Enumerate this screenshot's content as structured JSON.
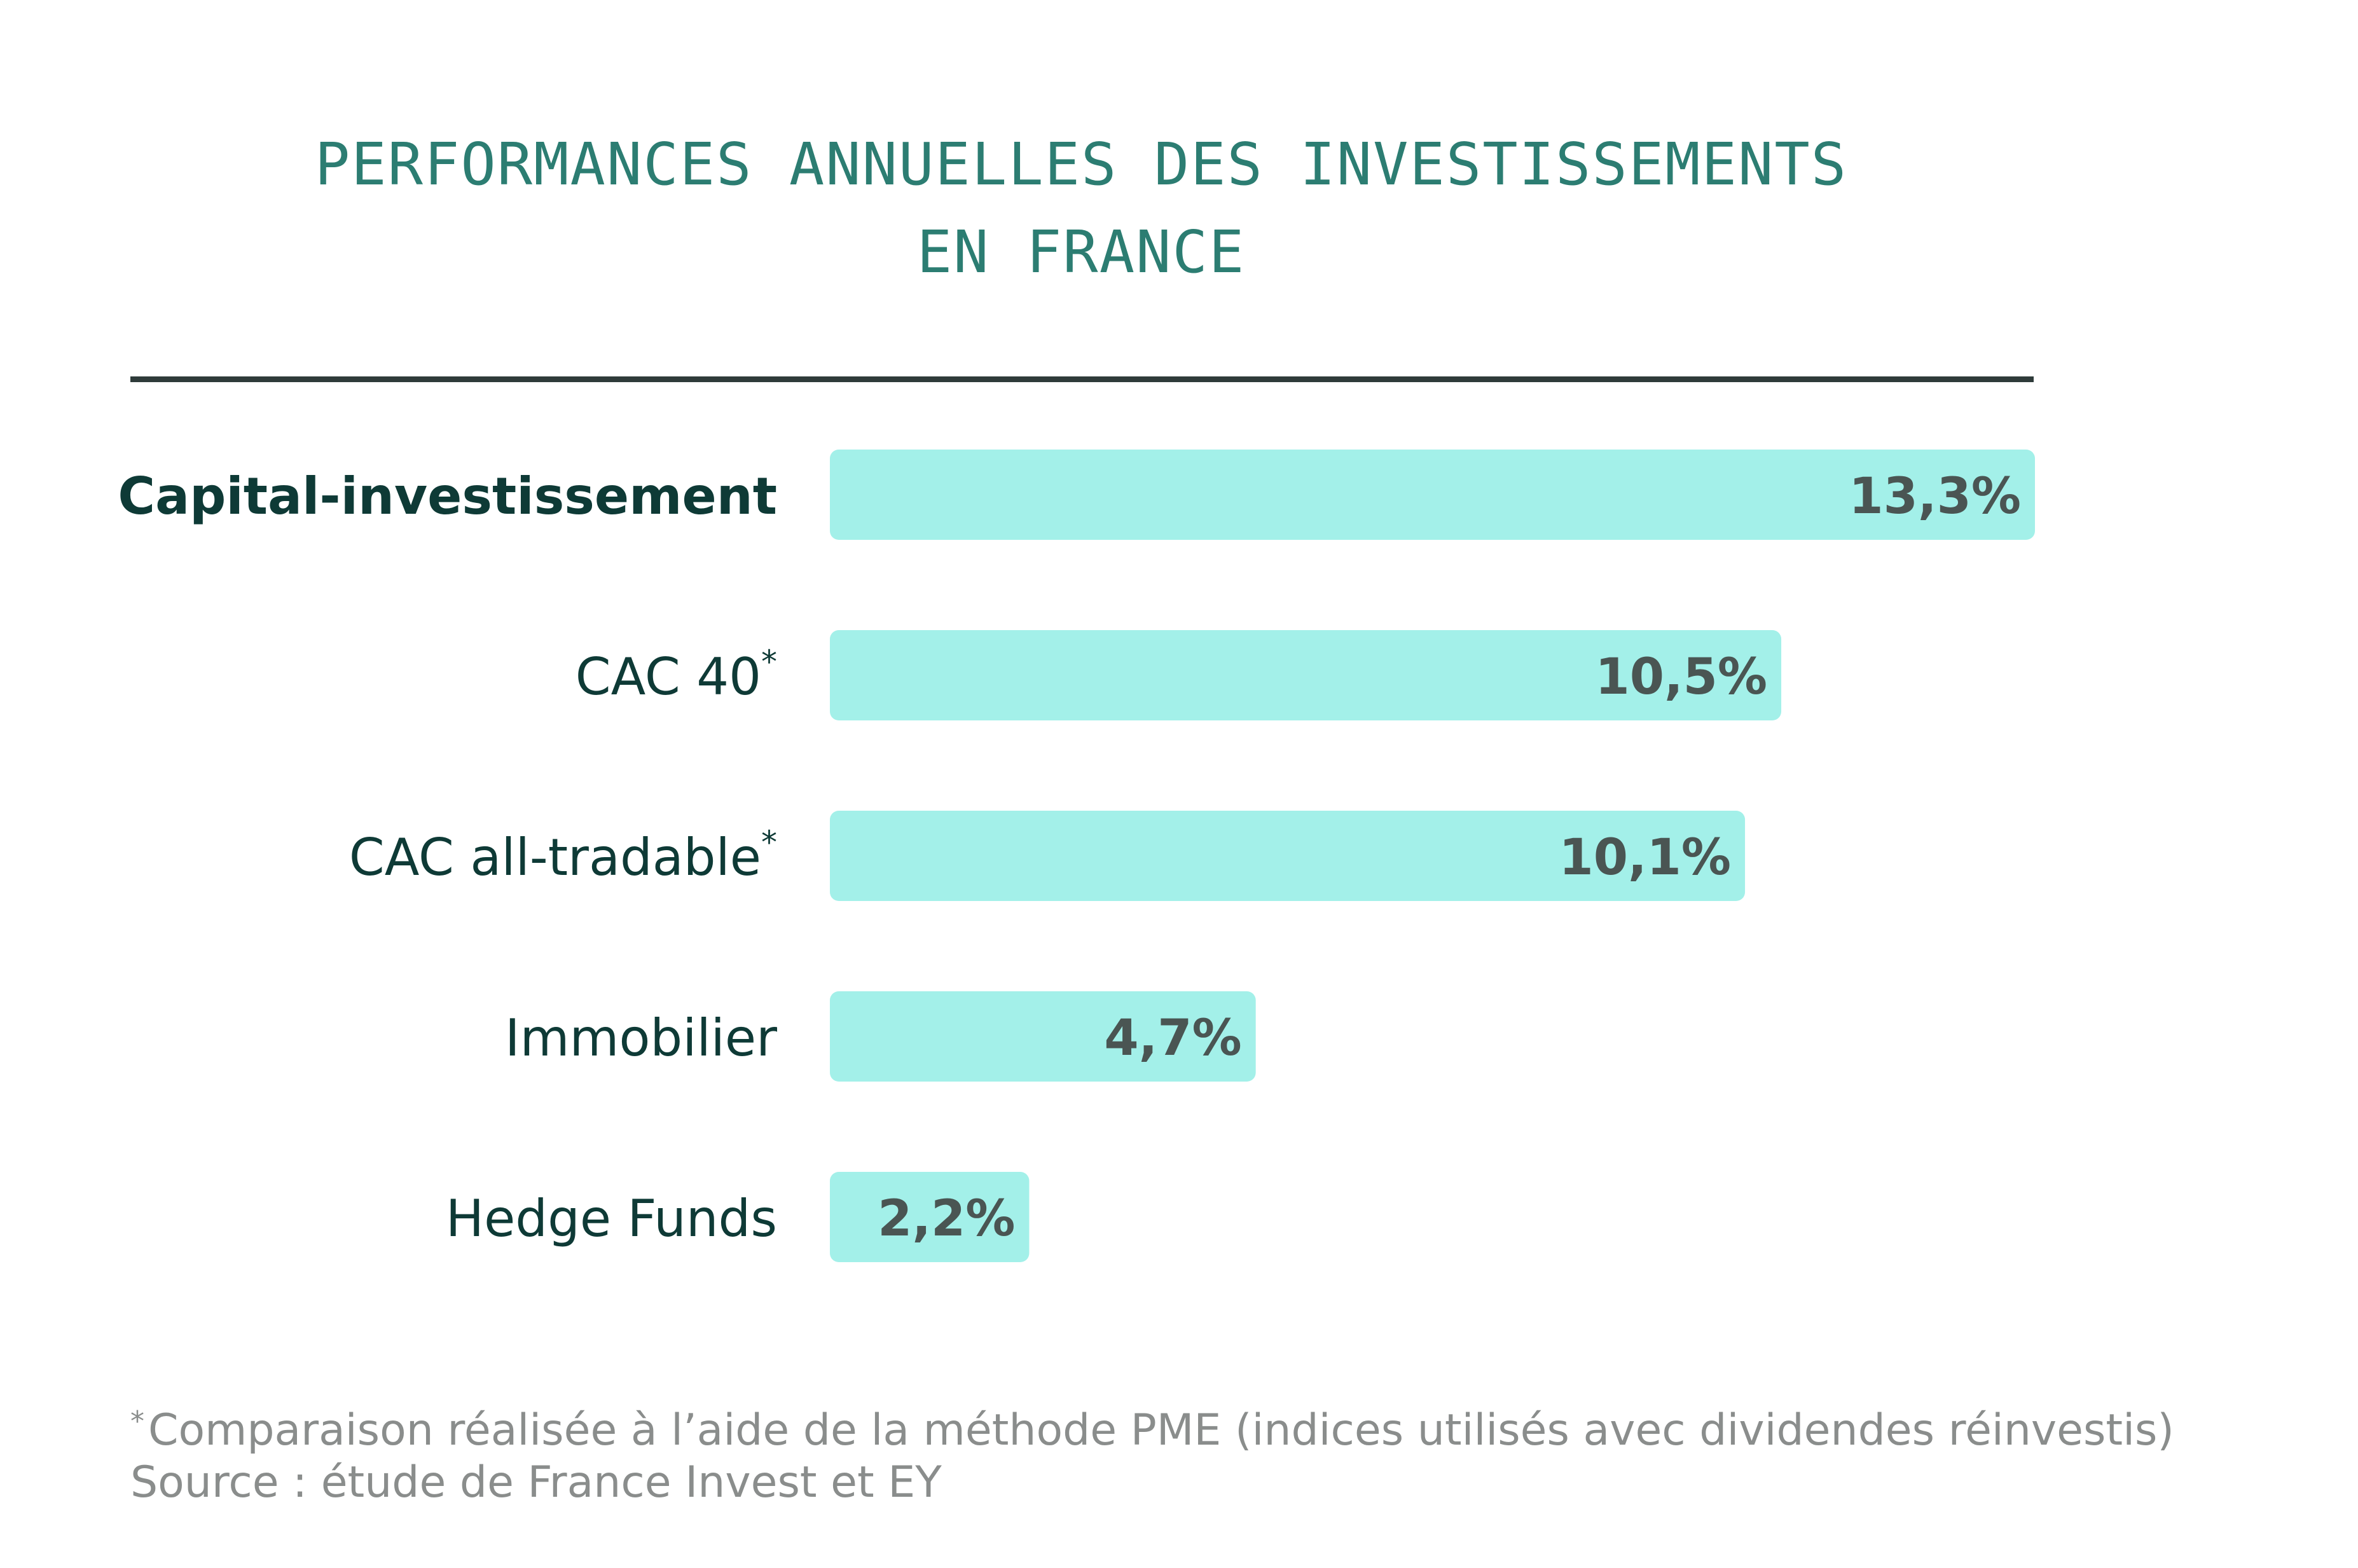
{
  "title_lines": [
    "PERFORMANCES ANNUELLES DES INVESTISSEMENTS",
    "EN FRANCE"
  ],
  "colors": {
    "title": "#2c7d72",
    "bar": "#a3f0e9",
    "category_label": "#0e3a36",
    "value_label": "#4a5553",
    "rule": "#2f3b3a",
    "footnote": "#8a8d8c"
  },
  "chart_data": {
    "type": "bar",
    "orientation": "horizontal",
    "title": "PERFORMANCES ANNUELLES DES INVESTISSEMENTS EN FRANCE",
    "categories": [
      "Capital-investissement",
      "CAC 40",
      "CAC all-tradable",
      "Immobilier",
      "Hedge Funds"
    ],
    "category_marks": [
      "",
      "*",
      "*",
      "",
      ""
    ],
    "category_bold": [
      true,
      false,
      false,
      false,
      false
    ],
    "values": [
      13.3,
      10.5,
      10.1,
      4.7,
      2.2
    ],
    "value_labels": [
      "13,3%",
      "10,5%",
      "10,1%",
      "4,7%",
      "2,2%"
    ],
    "unit": "%",
    "xlim": [
      0,
      13.3
    ],
    "grid": false,
    "legend": "none"
  },
  "footnote": {
    "star": "*",
    "text": "Comparaison réalisée à l’aide de la méthode PME (indices utilisés avec dividendes réinvestis)",
    "source": "Source : étude de France Invest et EY"
  }
}
